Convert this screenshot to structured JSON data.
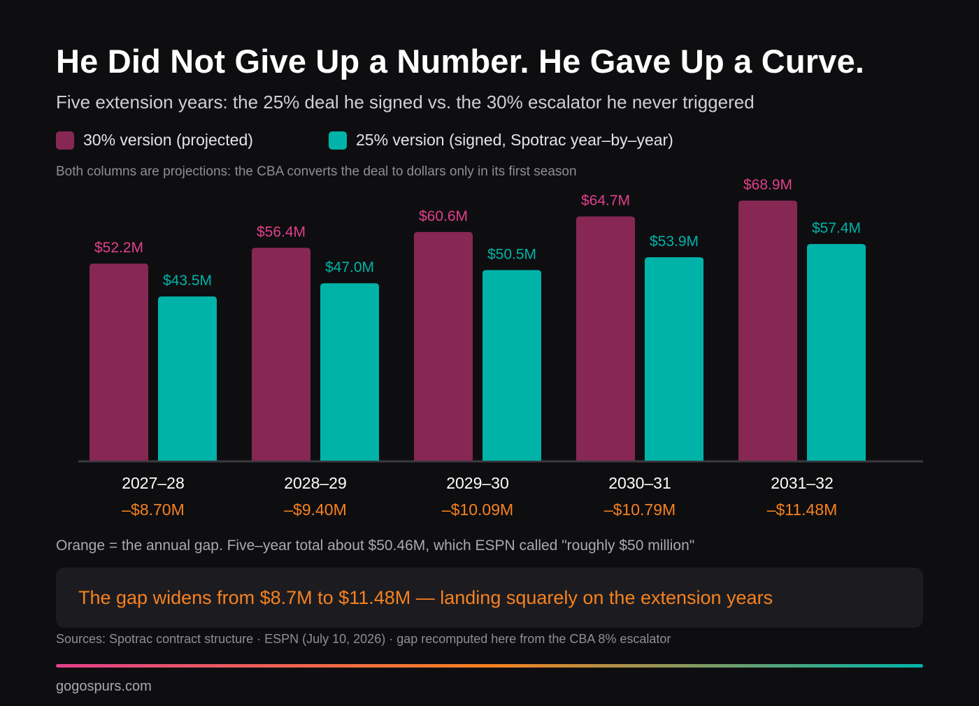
{
  "header": {
    "title": "He Did Not Give Up a Number. He Gave Up a Curve.",
    "subtitle": "Five extension years: the 25% deal he signed vs. the 30% escalator he never triggered",
    "note": "Both columns are projections: the CBA converts the deal to dollars only in its first season"
  },
  "legend": [
    {
      "label": "30% version (projected)",
      "color": "#862853"
    },
    {
      "label": "25% version (signed, Spotrac year–by–year)",
      "color": "#00b3a9"
    }
  ],
  "colors": {
    "series_30": "#862853",
    "series_30_label": "#e0408a",
    "series_25": "#00b3a9",
    "gap": "#f7811f",
    "baseline": "#3a3a40"
  },
  "chart_data": {
    "type": "bar",
    "categories": [
      "2027–28",
      "2028–29",
      "2029–30",
      "2030–31",
      "2031–32"
    ],
    "series": [
      {
        "name": "30% version (projected)",
        "values": [
          52.2,
          56.4,
          60.6,
          64.7,
          68.9
        ],
        "labels": [
          "$52.2M",
          "$56.4M",
          "$60.6M",
          "$64.7M",
          "$68.9M"
        ]
      },
      {
        "name": "25% version (signed, Spotrac year–by–year)",
        "values": [
          43.5,
          47.0,
          50.5,
          53.9,
          57.4
        ],
        "labels": [
          "$43.5M",
          "$47.0M",
          "$50.5M",
          "$53.9M",
          "$57.4M"
        ]
      }
    ],
    "gaps": [
      "–$8.70M",
      "–$9.40M",
      "–$10.09M",
      "–$10.79M",
      "–$11.48M"
    ],
    "ylim": [
      0,
      70
    ],
    "grid": false,
    "legend_position": "top-left"
  },
  "footer": {
    "gap_note": "Orange = the annual gap. Five–year total about $50.46M, which ESPN called \"roughly $50 million\"",
    "callout": "The gap widens from $8.7M to $11.48M — landing squarely on the extension years",
    "sources": "Sources: Spotrac contract structure · ESPN (July 10, 2026) · gap recomputed here from the CBA 8% escalator",
    "site": "gogospurs.com"
  }
}
